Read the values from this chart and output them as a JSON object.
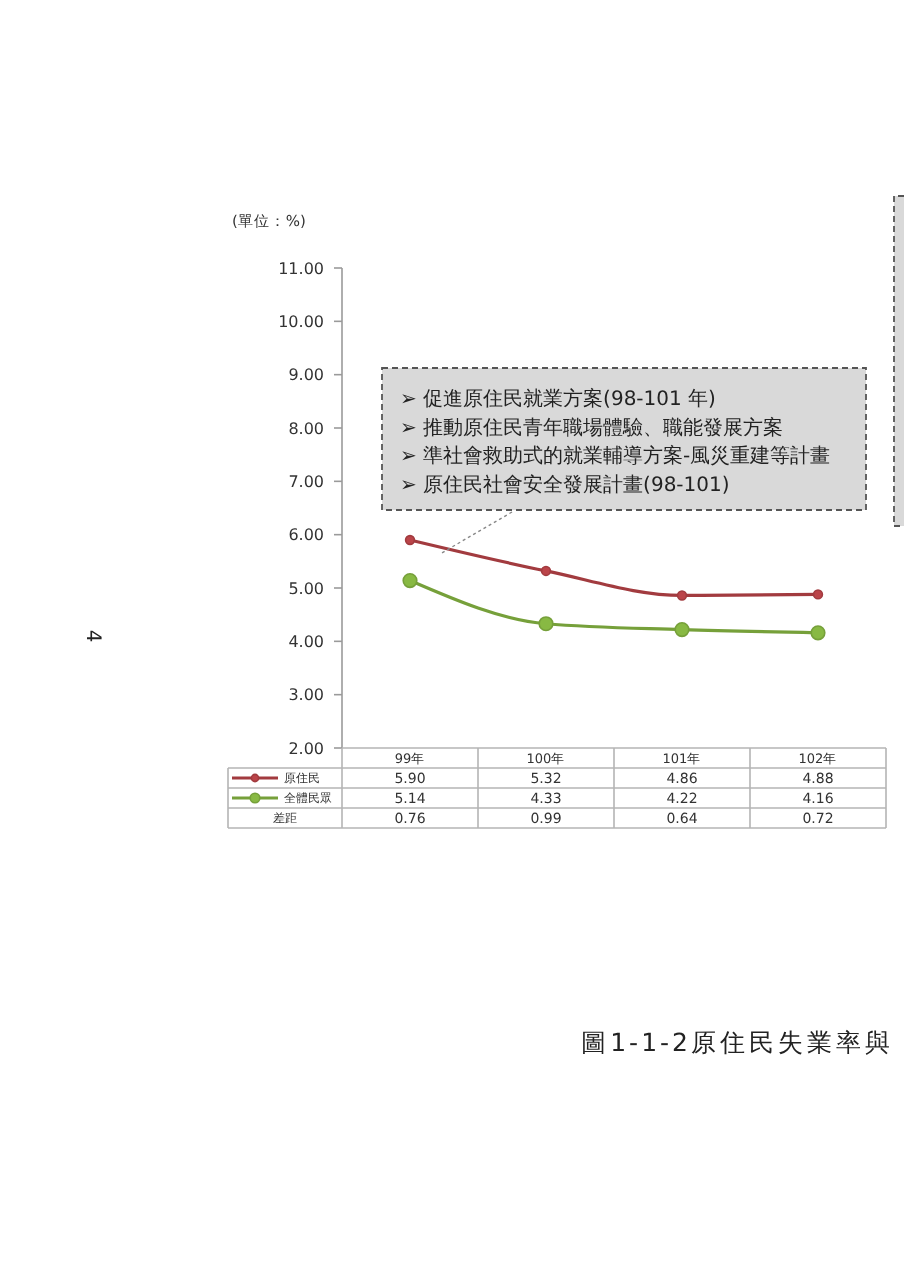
{
  "chart_data": {
    "type": "line",
    "title": "圖1-1-2原住民失業率與",
    "ylabel": "(單位：%)",
    "categories": [
      "99年",
      "100年",
      "101年",
      "102年"
    ],
    "series": [
      {
        "name": "原住民",
        "color": "#a23b3f",
        "values": [
          5.9,
          5.32,
          4.86,
          4.88
        ],
        "value_labels": [
          "5.90",
          "5.32",
          "4.86",
          "4.88"
        ]
      },
      {
        "name": "全體民眾",
        "color": "#76a03a",
        "values": [
          5.14,
          4.33,
          4.22,
          4.16
        ],
        "value_labels": [
          "5.14",
          "4.33",
          "4.22",
          "4.16"
        ]
      },
      {
        "name": "差距",
        "values": [
          null,
          null,
          null,
          null
        ],
        "value_labels": [
          "0.76",
          "0.99",
          "0.64",
          "0.72"
        ]
      }
    ],
    "ylim": [
      2,
      11
    ],
    "yticks": [
      {
        "value": 2,
        "label": "2.00"
      },
      {
        "value": 3,
        "label": "3.00"
      },
      {
        "value": 4,
        "label": "4.00"
      },
      {
        "value": 5,
        "label": "5.00"
      },
      {
        "value": 6,
        "label": "6.00"
      },
      {
        "value": 7,
        "label": "7.00"
      },
      {
        "value": 8,
        "label": "8.00"
      },
      {
        "value": 9,
        "label": "9.00"
      },
      {
        "value": 10,
        "label": "10.00"
      },
      {
        "value": 11,
        "label": "11.00"
      }
    ],
    "grid": false,
    "legend": "bottom",
    "marker": "circle",
    "annotations": [
      "➢ 促進原住民就業方案(98-101 年)",
      "➢ 推動原住民青年職場體驗、職能發展方案",
      "➢ 準社會救助式的就業輔導方案-風災重建等計畫",
      "➢ 原住民社會安全發展計畫(98-101)",
      "4"
    ]
  }
}
